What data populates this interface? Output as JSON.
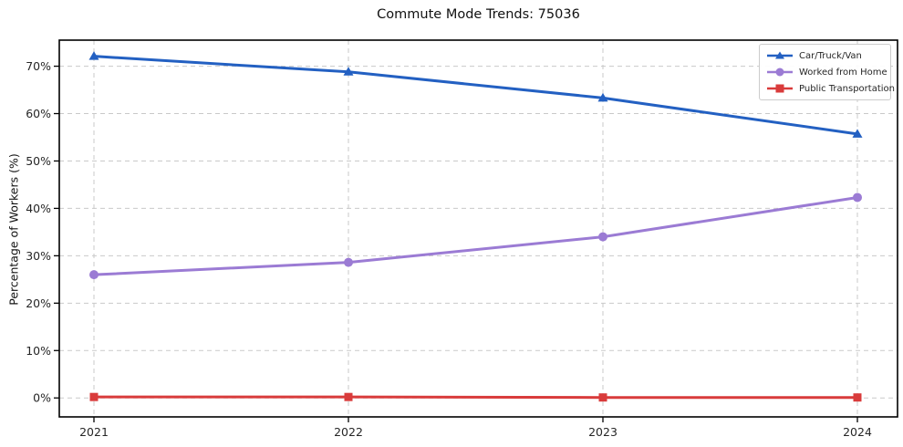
{
  "title": "Commute Mode Trends: 75036",
  "chart_data": {
    "type": "line",
    "title": "Commute Mode Trends: 75036",
    "xlabel": "",
    "ylabel": "Percentage of Workers (%)",
    "x": [
      2021,
      2022,
      2023,
      2024
    ],
    "x_tick_labels": [
      "2021",
      "2022",
      "2023",
      "2024"
    ],
    "y_ticks": [
      0,
      10,
      20,
      30,
      40,
      50,
      60,
      70
    ],
    "y_tick_labels": [
      "0%",
      "10%",
      "20%",
      "30%",
      "40%",
      "50%",
      "60%",
      "70%"
    ],
    "ylim": [
      -4,
      75.5
    ],
    "grid": "dashed, both axes",
    "legend_position": "upper right",
    "series": [
      {
        "name": "Car/Truck/Van",
        "marker": "triangle",
        "color": "#2360c2",
        "values": [
          72.1,
          68.8,
          63.3,
          55.7
        ]
      },
      {
        "name": "Worked from Home",
        "marker": "circle",
        "color": "#9b7bd4",
        "values": [
          26.0,
          28.6,
          34.0,
          42.3
        ]
      },
      {
        "name": "Public Transportation",
        "marker": "square",
        "color": "#d93b3b",
        "values": [
          0.2,
          0.2,
          0.1,
          0.1
        ]
      }
    ]
  },
  "colors": {
    "grid": "#c9c9c9",
    "spine": "#000000",
    "tick_label": "#262626",
    "legend_border": "#cccccc",
    "legend_bg": "#ffffff"
  }
}
